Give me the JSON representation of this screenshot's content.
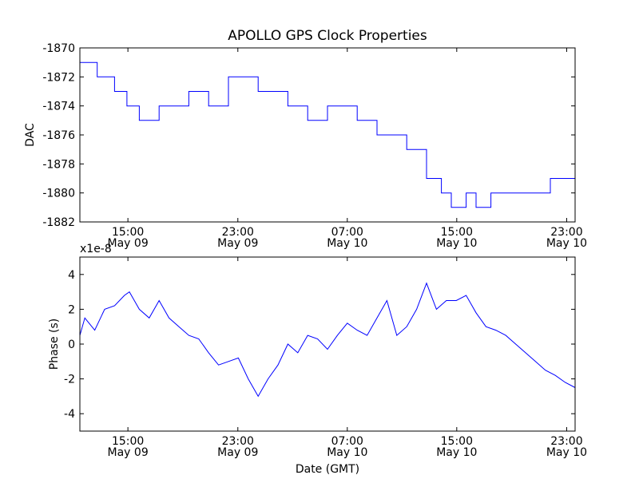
{
  "chart_data": {
    "title": "APOLLO GPS Clock Properties",
    "x_axis": {
      "label": "Date (GMT)",
      "range_hours": [
        10.5,
        24.5
      ],
      "ticks": [
        {
          "hour": 14.9,
          "time": "15:00",
          "date": "May 09"
        },
        {
          "hour": 17.95,
          "time": "23:00",
          "date": "May 09"
        },
        {
          "hour": 21.0,
          "time": "07:00",
          "date": "May 10"
        },
        {
          "hour": 24.05,
          "time": "15:00",
          "date": "May 10"
        },
        {
          "hour": 27.1,
          "time": "23:00",
          "date": "May 10"
        }
      ]
    },
    "panels": [
      {
        "type": "line",
        "ylabel": "DAC",
        "ylim": [
          -1882,
          -1870
        ],
        "yticks": [
          "-1870",
          "-1872",
          "-1874",
          "-1876",
          "-1878",
          "-1880",
          "-1882"
        ],
        "ytick_values": [
          -1870,
          -1872,
          -1874,
          -1876,
          -1878,
          -1880,
          -1882
        ],
        "offset_text": "",
        "series": [
          {
            "name": "DAC",
            "x": [
              0,
              0.035,
              0.035,
              0.07,
              0.07,
              0.095,
              0.095,
              0.12,
              0.12,
              0.16,
              0.16,
              0.22,
              0.22,
              0.26,
              0.26,
              0.3,
              0.3,
              0.36,
              0.36,
              0.42,
              0.42,
              0.46,
              0.46,
              0.5,
              0.5,
              0.56,
              0.56,
              0.6,
              0.6,
              0.66,
              0.66,
              0.7,
              0.7,
              0.73,
              0.73,
              0.75,
              0.75,
              0.78,
              0.78,
              0.8,
              0.8,
              0.83,
              0.83,
              0.88,
              0.88,
              0.95,
              0.95,
              1.0
            ],
            "values": [
              -1871,
              -1871,
              -1872,
              -1872,
              -1873,
              -1873,
              -1874,
              -1874,
              -1875,
              -1875,
              -1874,
              -1874,
              -1873,
              -1873,
              -1874,
              -1874,
              -1872,
              -1872,
              -1873,
              -1873,
              -1874,
              -1874,
              -1875,
              -1875,
              -1874,
              -1874,
              -1875,
              -1875,
              -1876,
              -1876,
              -1877,
              -1877,
              -1879,
              -1879,
              -1880,
              -1880,
              -1881,
              -1881,
              -1880,
              -1880,
              -1881,
              -1881,
              -1880,
              -1880,
              -1880,
              -1880,
              -1879,
              -1879
            ]
          }
        ]
      },
      {
        "type": "line",
        "ylabel": "Phase (s)",
        "ylim": [
          -5,
          5
        ],
        "yticks": [
          "4",
          "2",
          "0",
          "-2",
          "-4"
        ],
        "ytick_values": [
          4,
          2,
          0,
          -2,
          -4
        ],
        "offset_text": "x1e-8",
        "series": [
          {
            "name": "Phase",
            "x": [
              0,
              0.01,
              0.03,
              0.05,
              0.07,
              0.09,
              0.1,
              0.12,
              0.14,
              0.16,
              0.18,
              0.2,
              0.22,
              0.24,
              0.26,
              0.28,
              0.3,
              0.32,
              0.34,
              0.36,
              0.38,
              0.4,
              0.42,
              0.44,
              0.46,
              0.48,
              0.5,
              0.52,
              0.54,
              0.56,
              0.58,
              0.6,
              0.62,
              0.64,
              0.66,
              0.68,
              0.7,
              0.72,
              0.74,
              0.76,
              0.78,
              0.8,
              0.82,
              0.84,
              0.86,
              0.88,
              0.9,
              0.92,
              0.94,
              0.96,
              0.98,
              1.0
            ],
            "values": [
              0.5,
              1.5,
              0.8,
              2.0,
              2.2,
              2.8,
              3.0,
              2.0,
              1.5,
              2.5,
              1.5,
              1.0,
              0.5,
              0.3,
              -0.5,
              -1.2,
              -1.0,
              -0.8,
              -2.0,
              -3.0,
              -2.0,
              -1.2,
              0.0,
              -0.5,
              0.5,
              0.3,
              -0.3,
              0.5,
              1.2,
              0.8,
              0.5,
              1.5,
              2.5,
              0.5,
              1.0,
              2.0,
              3.5,
              2.0,
              2.5,
              2.5,
              2.8,
              1.8,
              1.0,
              0.8,
              0.5,
              0.0,
              -0.5,
              -1.0,
              -1.5,
              -1.8,
              -2.2,
              -2.5
            ]
          }
        ]
      }
    ]
  }
}
